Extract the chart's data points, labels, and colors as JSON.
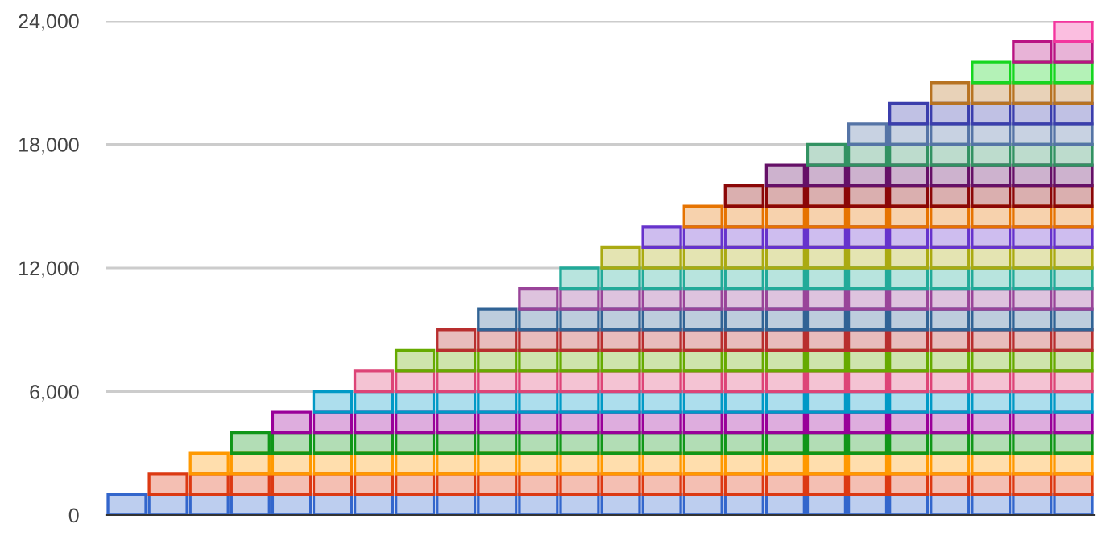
{
  "chart_data": {
    "type": "bar",
    "stacked": true,
    "categories": [
      null,
      null,
      null,
      null,
      null,
      null,
      null,
      null,
      null,
      null,
      null,
      null,
      null,
      null,
      null,
      null,
      null,
      null,
      null,
      null,
      null,
      null,
      null,
      null
    ],
    "ylim": [
      0,
      24000
    ],
    "yticks": [
      {
        "value": 0,
        "label": "0"
      },
      {
        "value": 6000,
        "label": "6,000"
      },
      {
        "value": 12000,
        "label": "12,000"
      },
      {
        "value": 18000,
        "label": "18,000"
      },
      {
        "value": 24000,
        "label": "24,000"
      }
    ],
    "grid": "y",
    "legend": false,
    "series": [
      {
        "color": "#3366cc",
        "values": [
          1000,
          1000,
          1000,
          1000,
          1000,
          1000,
          1000,
          1000,
          1000,
          1000,
          1000,
          1000,
          1000,
          1000,
          1000,
          1000,
          1000,
          1000,
          1000,
          1000,
          1000,
          1000,
          1000,
          1000
        ]
      },
      {
        "color": "#dc3912",
        "values": [
          null,
          1000,
          1000,
          1000,
          1000,
          1000,
          1000,
          1000,
          1000,
          1000,
          1000,
          1000,
          1000,
          1000,
          1000,
          1000,
          1000,
          1000,
          1000,
          1000,
          1000,
          1000,
          1000,
          1000
        ]
      },
      {
        "color": "#ff9900",
        "values": [
          null,
          null,
          1000,
          1000,
          1000,
          1000,
          1000,
          1000,
          1000,
          1000,
          1000,
          1000,
          1000,
          1000,
          1000,
          1000,
          1000,
          1000,
          1000,
          1000,
          1000,
          1000,
          1000,
          1000
        ]
      },
      {
        "color": "#109618",
        "values": [
          null,
          null,
          null,
          1000,
          1000,
          1000,
          1000,
          1000,
          1000,
          1000,
          1000,
          1000,
          1000,
          1000,
          1000,
          1000,
          1000,
          1000,
          1000,
          1000,
          1000,
          1000,
          1000,
          1000
        ]
      },
      {
        "color": "#990099",
        "values": [
          null,
          null,
          null,
          null,
          1000,
          1000,
          1000,
          1000,
          1000,
          1000,
          1000,
          1000,
          1000,
          1000,
          1000,
          1000,
          1000,
          1000,
          1000,
          1000,
          1000,
          1000,
          1000,
          1000
        ]
      },
      {
        "color": "#0099c6",
        "values": [
          null,
          null,
          null,
          null,
          null,
          1000,
          1000,
          1000,
          1000,
          1000,
          1000,
          1000,
          1000,
          1000,
          1000,
          1000,
          1000,
          1000,
          1000,
          1000,
          1000,
          1000,
          1000,
          1000
        ]
      },
      {
        "color": "#dd4477",
        "values": [
          null,
          null,
          null,
          null,
          null,
          null,
          1000,
          1000,
          1000,
          1000,
          1000,
          1000,
          1000,
          1000,
          1000,
          1000,
          1000,
          1000,
          1000,
          1000,
          1000,
          1000,
          1000,
          1000
        ]
      },
      {
        "color": "#66aa00",
        "values": [
          null,
          null,
          null,
          null,
          null,
          null,
          null,
          1000,
          1000,
          1000,
          1000,
          1000,
          1000,
          1000,
          1000,
          1000,
          1000,
          1000,
          1000,
          1000,
          1000,
          1000,
          1000,
          1000
        ]
      },
      {
        "color": "#b82e2e",
        "values": [
          null,
          null,
          null,
          null,
          null,
          null,
          null,
          null,
          1000,
          1000,
          1000,
          1000,
          1000,
          1000,
          1000,
          1000,
          1000,
          1000,
          1000,
          1000,
          1000,
          1000,
          1000,
          1000
        ]
      },
      {
        "color": "#316395",
        "values": [
          null,
          null,
          null,
          null,
          null,
          null,
          null,
          null,
          null,
          1000,
          1000,
          1000,
          1000,
          1000,
          1000,
          1000,
          1000,
          1000,
          1000,
          1000,
          1000,
          1000,
          1000,
          1000
        ]
      },
      {
        "color": "#994499",
        "values": [
          null,
          null,
          null,
          null,
          null,
          null,
          null,
          null,
          null,
          null,
          1000,
          1000,
          1000,
          1000,
          1000,
          1000,
          1000,
          1000,
          1000,
          1000,
          1000,
          1000,
          1000,
          1000
        ]
      },
      {
        "color": "#22aa99",
        "values": [
          null,
          null,
          null,
          null,
          null,
          null,
          null,
          null,
          null,
          null,
          null,
          1000,
          1000,
          1000,
          1000,
          1000,
          1000,
          1000,
          1000,
          1000,
          1000,
          1000,
          1000,
          1000
        ]
      },
      {
        "color": "#aaaa11",
        "values": [
          null,
          null,
          null,
          null,
          null,
          null,
          null,
          null,
          null,
          null,
          null,
          null,
          1000,
          1000,
          1000,
          1000,
          1000,
          1000,
          1000,
          1000,
          1000,
          1000,
          1000,
          1000
        ]
      },
      {
        "color": "#6633cc",
        "values": [
          null,
          null,
          null,
          null,
          null,
          null,
          null,
          null,
          null,
          null,
          null,
          null,
          null,
          1000,
          1000,
          1000,
          1000,
          1000,
          1000,
          1000,
          1000,
          1000,
          1000,
          1000
        ]
      },
      {
        "color": "#e67300",
        "values": [
          null,
          null,
          null,
          null,
          null,
          null,
          null,
          null,
          null,
          null,
          null,
          null,
          null,
          null,
          1000,
          1000,
          1000,
          1000,
          1000,
          1000,
          1000,
          1000,
          1000,
          1000
        ]
      },
      {
        "color": "#8b0707",
        "values": [
          null,
          null,
          null,
          null,
          null,
          null,
          null,
          null,
          null,
          null,
          null,
          null,
          null,
          null,
          null,
          1000,
          1000,
          1000,
          1000,
          1000,
          1000,
          1000,
          1000,
          1000
        ]
      },
      {
        "color": "#651067",
        "values": [
          null,
          null,
          null,
          null,
          null,
          null,
          null,
          null,
          null,
          null,
          null,
          null,
          null,
          null,
          null,
          null,
          1000,
          1000,
          1000,
          1000,
          1000,
          1000,
          1000,
          1000
        ]
      },
      {
        "color": "#329262",
        "values": [
          null,
          null,
          null,
          null,
          null,
          null,
          null,
          null,
          null,
          null,
          null,
          null,
          null,
          null,
          null,
          null,
          null,
          1000,
          1000,
          1000,
          1000,
          1000,
          1000,
          1000
        ]
      },
      {
        "color": "#5574a6",
        "values": [
          null,
          null,
          null,
          null,
          null,
          null,
          null,
          null,
          null,
          null,
          null,
          null,
          null,
          null,
          null,
          null,
          null,
          null,
          1000,
          1000,
          1000,
          1000,
          1000,
          1000
        ]
      },
      {
        "color": "#3b3eac",
        "values": [
          null,
          null,
          null,
          null,
          null,
          null,
          null,
          null,
          null,
          null,
          null,
          null,
          null,
          null,
          null,
          null,
          null,
          null,
          null,
          1000,
          1000,
          1000,
          1000,
          1000
        ]
      },
      {
        "color": "#b77322",
        "values": [
          null,
          null,
          null,
          null,
          null,
          null,
          null,
          null,
          null,
          null,
          null,
          null,
          null,
          null,
          null,
          null,
          null,
          null,
          null,
          null,
          1000,
          1000,
          1000,
          1000
        ]
      },
      {
        "color": "#16d620",
        "values": [
          null,
          null,
          null,
          null,
          null,
          null,
          null,
          null,
          null,
          null,
          null,
          null,
          null,
          null,
          null,
          null,
          null,
          null,
          null,
          null,
          null,
          1000,
          1000,
          1000
        ]
      },
      {
        "color": "#b91383",
        "values": [
          null,
          null,
          null,
          null,
          null,
          null,
          null,
          null,
          null,
          null,
          null,
          null,
          null,
          null,
          null,
          null,
          null,
          null,
          null,
          null,
          null,
          null,
          1000,
          1000
        ]
      },
      {
        "color": "#f4359e",
        "values": [
          null,
          null,
          null,
          null,
          null,
          null,
          null,
          null,
          null,
          null,
          null,
          null,
          null,
          null,
          null,
          null,
          null,
          null,
          null,
          null,
          null,
          null,
          null,
          1000
        ]
      }
    ]
  }
}
